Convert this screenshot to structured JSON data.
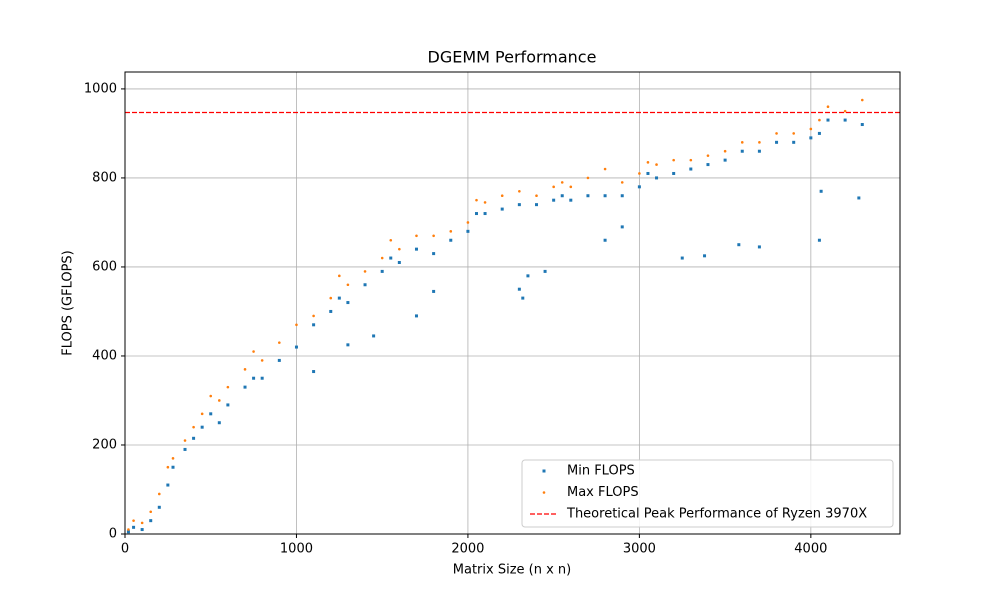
{
  "chart_data": {
    "type": "scatter",
    "title": "DGEMM Performance",
    "x_label": "Matrix Size (n x n)",
    "y_label": "FLOPS (GFLOPS)",
    "xlim": [
      0,
      4520
    ],
    "ylim": [
      0,
      1038
    ],
    "xticks": [
      0,
      1000,
      2000,
      3000,
      4000
    ],
    "yticks": [
      0,
      200,
      400,
      600,
      800,
      1000
    ],
    "grid": true,
    "legend": "lower right",
    "series": [
      {
        "name": "Min FLOPS",
        "color": "#1f77b4",
        "marker": "square",
        "x": [
          20,
          50,
          100,
          150,
          200,
          250,
          280,
          350,
          400,
          450,
          500,
          550,
          600,
          700,
          750,
          800,
          900,
          1000,
          1100,
          1200,
          1250,
          1300,
          1400,
          1500,
          1550,
          1600,
          1700,
          1800,
          1900,
          2000,
          2050,
          2100,
          2200,
          2300,
          2400,
          2500,
          2550,
          2600,
          2700,
          2800,
          2900,
          3000,
          3050,
          3100,
          3200,
          3300,
          3400,
          3500,
          3600,
          3700,
          3800,
          3900,
          4000,
          4050,
          4100,
          4200,
          4300,
          1100,
          1300,
          1450,
          1700,
          1800,
          2300,
          2320,
          2350,
          2450,
          2800,
          2900,
          3250,
          3380,
          3580,
          3700,
          4050,
          4060,
          4280
        ],
        "values": [
          5,
          15,
          10,
          30,
          60,
          110,
          150,
          190,
          215,
          240,
          270,
          250,
          290,
          330,
          350,
          350,
          390,
          420,
          470,
          500,
          530,
          520,
          560,
          590,
          620,
          610,
          640,
          630,
          660,
          680,
          720,
          720,
          730,
          740,
          740,
          750,
          760,
          750,
          760,
          760,
          760,
          780,
          810,
          800,
          810,
          820,
          830,
          840,
          860,
          860,
          880,
          880,
          890,
          900,
          930,
          930,
          920,
          365,
          425,
          445,
          490,
          545,
          550,
          530,
          580,
          590,
          660,
          690,
          620,
          625,
          650,
          645,
          660,
          770,
          755
        ]
      },
      {
        "name": "Max FLOPS",
        "color": "#ff7f0e",
        "marker": "circle",
        "x": [
          20,
          50,
          100,
          150,
          200,
          250,
          280,
          350,
          400,
          450,
          500,
          550,
          600,
          700,
          750,
          800,
          900,
          1000,
          1100,
          1200,
          1250,
          1300,
          1400,
          1500,
          1550,
          1600,
          1700,
          1800,
          1900,
          2000,
          2050,
          2100,
          2200,
          2300,
          2400,
          2500,
          2550,
          2600,
          2700,
          2800,
          2900,
          3000,
          3050,
          3100,
          3200,
          3300,
          3400,
          3500,
          3600,
          3700,
          3800,
          3900,
          4000,
          4050,
          4100,
          4200,
          4300
        ],
        "values": [
          10,
          30,
          25,
          50,
          90,
          150,
          170,
          210,
          240,
          270,
          310,
          300,
          330,
          370,
          410,
          390,
          430,
          470,
          490,
          530,
          580,
          560,
          590,
          620,
          660,
          640,
          670,
          670,
          680,
          700,
          750,
          745,
          760,
          770,
          760,
          780,
          790,
          780,
          800,
          820,
          790,
          810,
          835,
          830,
          840,
          840,
          850,
          860,
          880,
          880,
          900,
          900,
          910,
          930,
          960,
          950,
          975
        ]
      }
    ],
    "hlines": [
      {
        "name": "Theoretical Peak Performance of Ryzen 3970X",
        "color": "#ff0000",
        "value": 947,
        "style": "dashed"
      }
    ]
  }
}
